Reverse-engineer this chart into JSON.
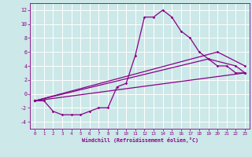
{
  "background_color": "#cce8e8",
  "grid_color": "#ffffff",
  "line_color": "#880088",
  "xlim": [
    -0.5,
    23.5
  ],
  "ylim": [
    -5,
    13
  ],
  "xticks": [
    0,
    1,
    2,
    3,
    4,
    5,
    6,
    7,
    8,
    9,
    10,
    11,
    12,
    13,
    14,
    15,
    16,
    17,
    18,
    19,
    20,
    21,
    22,
    23
  ],
  "yticks": [
    -4,
    -2,
    0,
    2,
    4,
    6,
    8,
    10,
    12
  ],
  "xlabel": "Windchill (Refroidissement éolien,°C)",
  "series": [
    {
      "x": [
        0,
        1,
        2,
        3,
        4,
        5,
        6,
        7,
        8,
        9,
        10,
        11,
        12,
        13,
        14,
        15,
        16,
        17,
        18,
        19,
        20,
        21,
        22,
        23
      ],
      "y": [
        -1,
        -1,
        -2.5,
        -3,
        -3,
        -3,
        -2.5,
        -2,
        -2,
        1,
        1.5,
        5.5,
        11,
        11,
        12,
        11,
        9,
        8,
        6,
        5,
        4,
        4,
        3,
        3
      ]
    },
    {
      "x": [
        0,
        23
      ],
      "y": [
        -1,
        3
      ]
    },
    {
      "x": [
        0,
        20,
        23
      ],
      "y": [
        -1,
        6,
        4
      ]
    },
    {
      "x": [
        0,
        19,
        22,
        23
      ],
      "y": [
        -1,
        5,
        4,
        3
      ]
    }
  ]
}
